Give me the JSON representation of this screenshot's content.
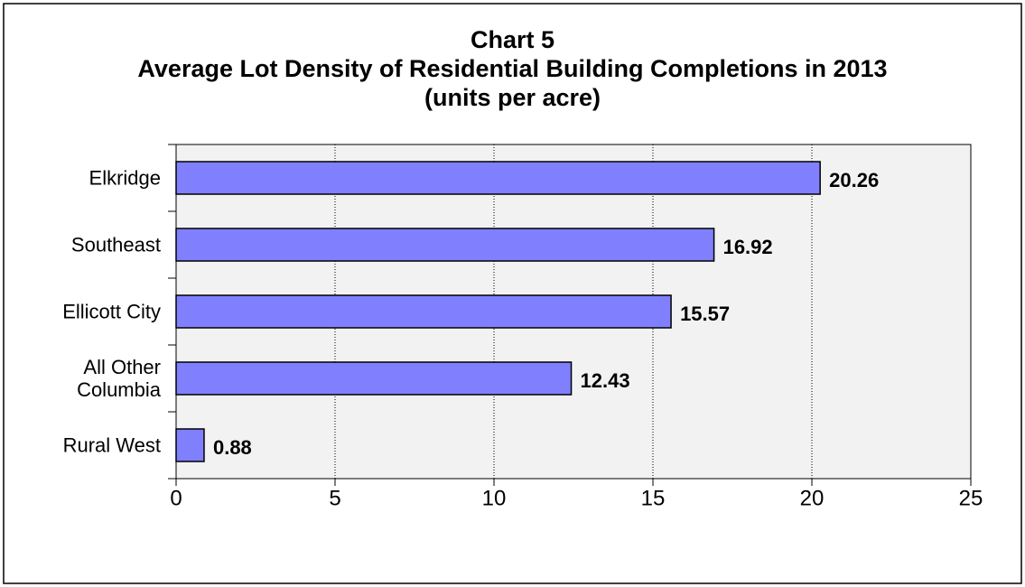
{
  "chart_data": {
    "type": "bar",
    "orientation": "horizontal",
    "title": "Chart 5",
    "subtitle": "Average Lot Density of Residential Building Completions in 2013 (units per acre)",
    "categories": [
      "Elkridge",
      "Southeast",
      "Ellicott City",
      "All Other Columbia",
      "Rural West"
    ],
    "values": [
      20.26,
      16.92,
      15.57,
      12.43,
      0.88
    ],
    "value_labels": [
      "20.26",
      "16.92",
      "15.57",
      "12.43",
      "0.88"
    ],
    "color": "#8080ff",
    "xlim": [
      0,
      25
    ],
    "xticks": [
      0,
      5,
      10,
      15,
      20,
      25
    ],
    "grid": true
  }
}
